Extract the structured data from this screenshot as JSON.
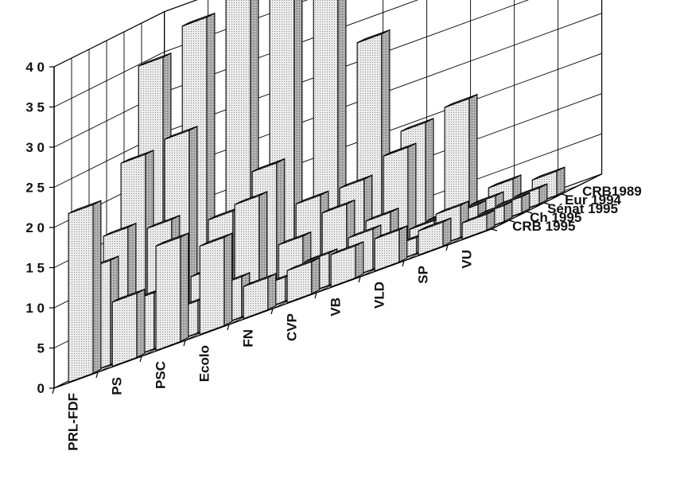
{
  "chart_data": {
    "type": "bar",
    "variant": "3d-column",
    "title": "",
    "xlabel": "",
    "ylabel": "",
    "ylim": [
      0,
      40
    ],
    "yticks": [
      "0",
      "5",
      "1 0",
      "1 5",
      "2 0",
      "2 5",
      "3 0",
      "3 5",
      "4 0"
    ],
    "grid": true,
    "categories": [
      "PRL-FDF",
      "PS",
      "PSC",
      "Ecolo",
      "FN",
      "CVP",
      "VB",
      "VLD",
      "SP",
      "VU"
    ],
    "series": [
      {
        "name": "CRB1989",
        "values": [
          35,
          38,
          42,
          40,
          42,
          28,
          15,
          16,
          4,
          3
        ]
      },
      {
        "name": "Eur  1994",
        "values": [
          24,
          25,
          13,
          17,
          11,
          11,
          13,
          3,
          3,
          2
        ]
      },
      {
        "name": "Sénat 1995",
        "values": [
          16,
          15,
          7,
          14,
          7,
          9,
          6,
          3,
          3,
          2
        ]
      },
      {
        "name": "Ch  1995",
        "values": [
          13,
          7,
          4,
          5,
          3,
          4,
          5,
          2,
          4,
          2
        ]
      },
      {
        "name": "CRB 1995",
        "values": [
          21,
          8,
          13,
          11,
          4,
          4,
          4,
          4,
          3,
          2
        ]
      }
    ],
    "colors": {
      "front_face": "#e4e4e4",
      "side_face": "#b8b8b8",
      "top_face": "#d2d2d2",
      "edge": "#000000",
      "grid": "#000000"
    }
  }
}
